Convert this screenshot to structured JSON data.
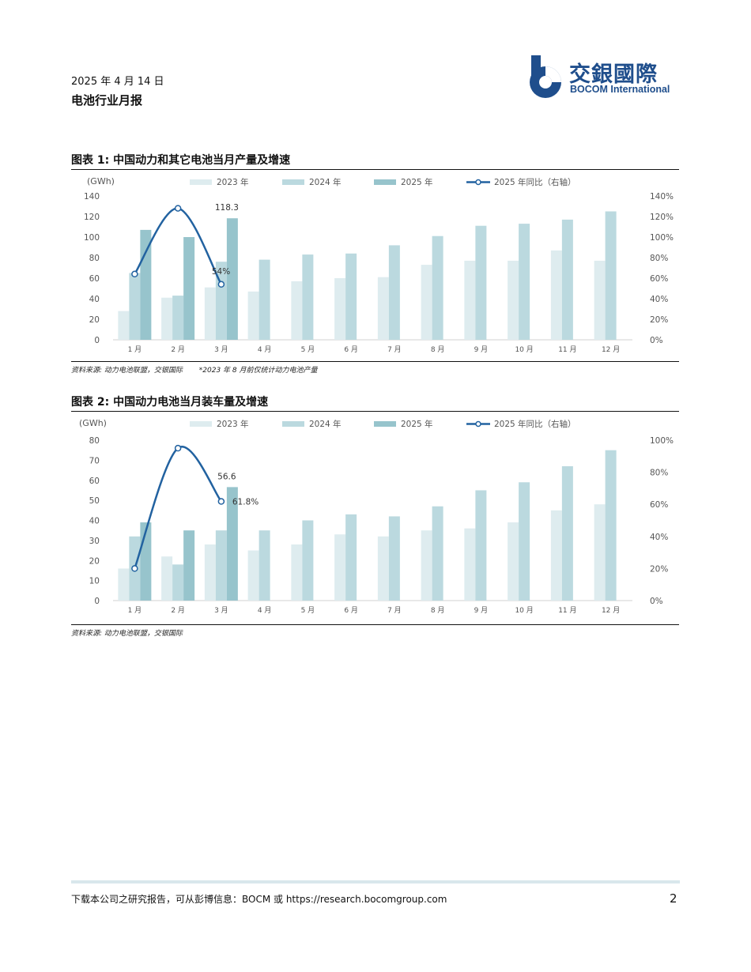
{
  "header": {
    "date": "2025 年 4 月 14 日",
    "report_title": "电池行业月报",
    "logo_cn": "交銀國際",
    "logo_en": "BOCOM International"
  },
  "colors": {
    "c2023": "#deecef",
    "c2024": "#bbd9df",
    "c2025": "#97c4cc",
    "line": "#2262a0",
    "axis_text": "#555555"
  },
  "figures": [
    {
      "title": "图表 1: 中国动力和其它电池当月产量及增速",
      "source": "资料来源: 动力电池联盟，交银国际",
      "note": "*2023 年 8 月前仅统计动力电池产量",
      "unit": "(GWh)",
      "legend": [
        "2023 年",
        "2024 年",
        "2025 年",
        "2025 年同比（右轴）"
      ],
      "yticks_left": [
        "0",
        "20",
        "40",
        "60",
        "80",
        "100",
        "120",
        "140"
      ],
      "yticks_right": [
        "0%",
        "20%",
        "40%",
        "60%",
        "80%",
        "100%",
        "120%",
        "140%"
      ],
      "bar_annotation": "118.3",
      "line_annotation": "54%"
    },
    {
      "title": "图表 2: 中国动力电池当月装车量及增速",
      "source": "资料来源: 动力电池联盟，交银国际",
      "unit": "(GWh)",
      "legend": [
        "2023 年",
        "2024 年",
        "2025 年",
        "2025 年同比（右轴）"
      ],
      "yticks_left": [
        "0",
        "10",
        "20",
        "30",
        "40",
        "50",
        "60",
        "70",
        "80"
      ],
      "yticks_right": [
        "0%",
        "20%",
        "40%",
        "60%",
        "80%",
        "100%"
      ],
      "bar_annotation": "56.6",
      "line_annotation": "61.8%"
    }
  ],
  "chart_data": [
    {
      "type": "bar",
      "title": "图表 1: 中国动力和其它电池当月产量及增速",
      "categories": [
        "1 月",
        "2 月",
        "3 月",
        "4 月",
        "5 月",
        "6 月",
        "7 月",
        "8 月",
        "9 月",
        "10 月",
        "11 月",
        "12 月"
      ],
      "ylabel": "(GWh)",
      "ylim": [
        0,
        140
      ],
      "y2lim": [
        0,
        140
      ],
      "series": [
        {
          "name": "2023 年",
          "values": [
            28,
            41,
            51,
            47,
            57,
            60,
            61,
            73,
            77,
            77,
            87,
            77
          ]
        },
        {
          "name": "2024 年",
          "values": [
            65,
            43,
            76,
            78,
            83,
            84,
            92,
            101,
            111,
            113,
            117,
            125
          ]
        },
        {
          "name": "2025 年",
          "values": [
            107,
            100,
            118.3,
            null,
            null,
            null,
            null,
            null,
            null,
            null,
            null,
            null
          ]
        },
        {
          "name": "2025 年同比（右轴）",
          "axis": "right",
          "type": "line",
          "values": [
            64,
            128,
            54,
            null,
            null,
            null,
            null,
            null,
            null,
            null,
            null,
            null
          ]
        }
      ],
      "legend_position": "top",
      "grid": false
    },
    {
      "type": "bar",
      "title": "图表 2: 中国动力电池当月装车量及增速",
      "categories": [
        "1 月",
        "2 月",
        "3 月",
        "4 月",
        "5 月",
        "6 月",
        "7 月",
        "8 月",
        "9 月",
        "10 月",
        "11 月",
        "12 月"
      ],
      "ylabel": "(GWh)",
      "ylim": [
        0,
        80
      ],
      "y2lim": [
        0,
        100
      ],
      "series": [
        {
          "name": "2023 年",
          "values": [
            16,
            22,
            28,
            25,
            28,
            33,
            32,
            35,
            36,
            39,
            45,
            48
          ]
        },
        {
          "name": "2024 年",
          "values": [
            32,
            18,
            35,
            35,
            40,
            43,
            42,
            47,
            55,
            59,
            67,
            75
          ]
        },
        {
          "name": "2025 年",
          "values": [
            39,
            35,
            56.6,
            null,
            null,
            null,
            null,
            null,
            null,
            null,
            null,
            null
          ]
        },
        {
          "name": "2025 年同比（右轴）",
          "axis": "right",
          "type": "line",
          "values": [
            20,
            95,
            61.8,
            null,
            null,
            null,
            null,
            null,
            null,
            null,
            null,
            null
          ]
        }
      ],
      "legend_position": "top",
      "grid": false
    }
  ],
  "footer": {
    "text": "下载本公司之研究报告，可从彭博信息：BOCM 或 https://research.bocomgroup.com",
    "page_number": "2"
  }
}
